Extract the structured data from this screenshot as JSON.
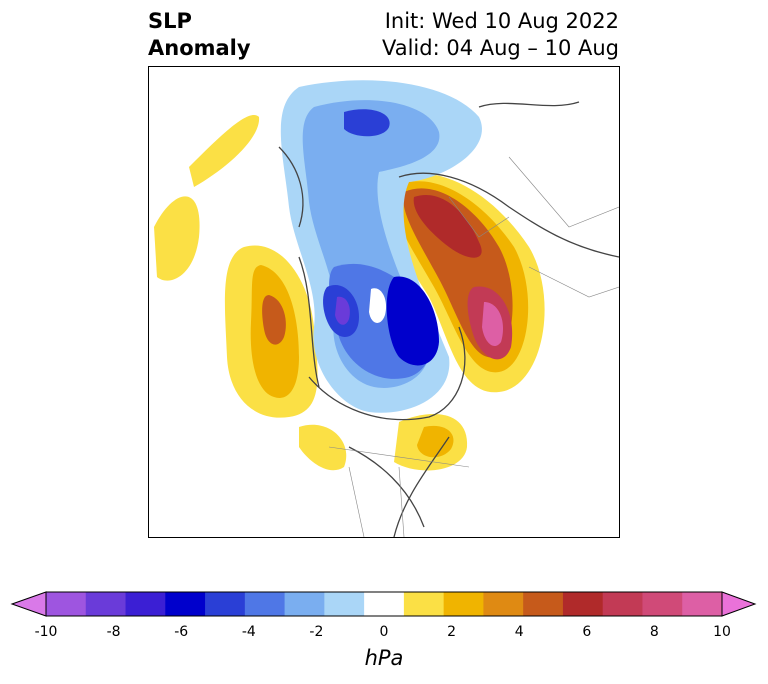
{
  "header": {
    "title_line1": "SLP",
    "title_line2": "Anomaly",
    "init_text": "Init: Wed 10 Aug 2022",
    "valid_text": "Valid: 04 Aug – 10 Aug"
  },
  "colorbar": {
    "unit": "hPa",
    "ticks": [
      "-10",
      "-8",
      "-6",
      "-4",
      "-2",
      "0",
      "2",
      "4",
      "6",
      "8",
      "10"
    ],
    "colors": [
      "#d979e8",
      "#9e55e0",
      "#6a3bd9",
      "#3b1fd4",
      "#0000cc",
      "#2a3fd6",
      "#4f77e6",
      "#7aaef0",
      "#aad6f7",
      "#ffffff",
      "#fbe045",
      "#f0b400",
      "#df8a13",
      "#c65a1b",
      "#b02a2a",
      "#c23a55",
      "#d04a78",
      "#dd5fa5",
      "#ea72d9"
    ],
    "extend": "both"
  }
}
